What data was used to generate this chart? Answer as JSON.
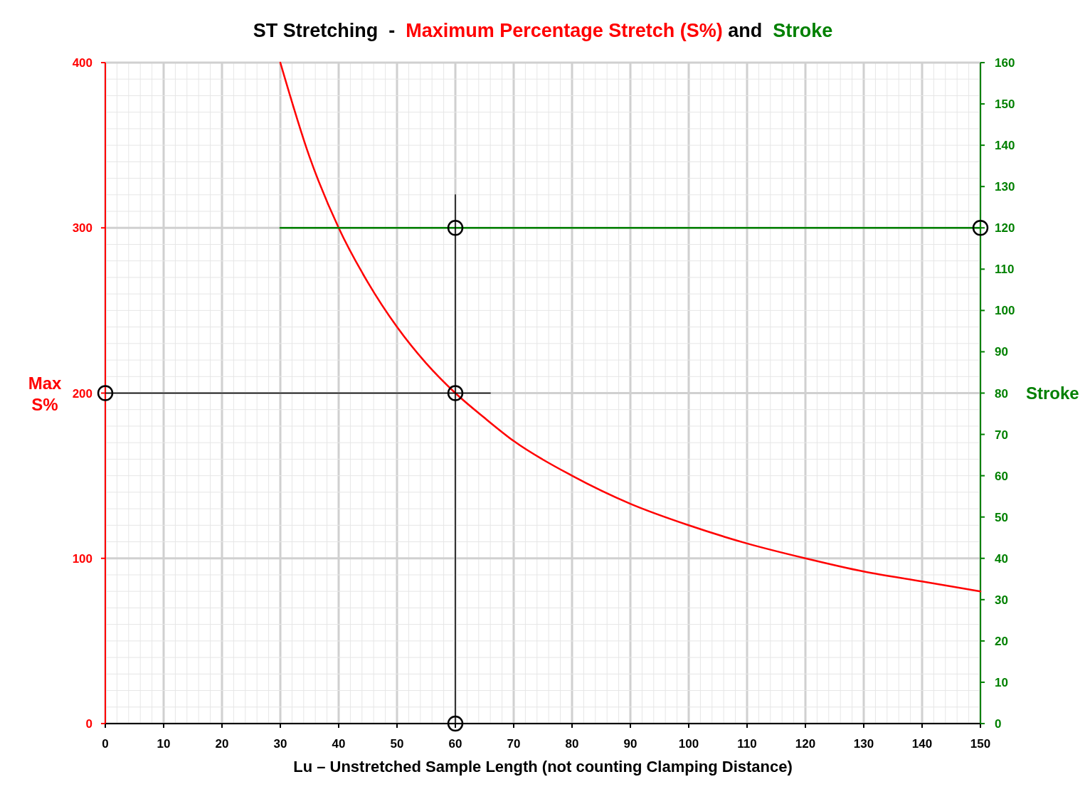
{
  "chart_data": {
    "type": "line",
    "title": "ST Stretching  -  ",
    "annotations": [
      " and  "
    ],
    "legend": "top",
    "xlabel": "Lu  – Unstretched Sample Length (not counting Clamping Distance)",
    "ylabel": "Max\nS%",
    "y2label": "Stroke",
    "xlim": [
      0,
      150
    ],
    "xticks": [
      0,
      10,
      20,
      30,
      40,
      50,
      60,
      70,
      80,
      90,
      100,
      110,
      120,
      130,
      140,
      150
    ],
    "ylim": [
      0,
      400
    ],
    "yticks": [
      0,
      100,
      200,
      300,
      400
    ],
    "y2lim": [
      0,
      160
    ],
    "y2ticks": [
      0,
      10,
      20,
      30,
      40,
      50,
      60,
      70,
      80,
      90,
      100,
      110,
      120,
      130,
      140,
      150,
      160
    ],
    "grid": true,
    "line_style": "solid",
    "series": [
      {
        "name": "Maximum Percentage Stretch (S%)",
        "color": "#ff0000",
        "x": [
          30,
          35,
          40,
          45,
          50,
          55,
          60,
          65,
          70,
          80,
          90,
          100,
          110,
          120,
          130,
          140,
          150
        ],
        "values": [
          400,
          343,
          300,
          267,
          240,
          218,
          200,
          185,
          171,
          150,
          133,
          120,
          109,
          100,
          92,
          86,
          80
        ]
      },
      {
        "name": "Stroke",
        "color": "#008000",
        "axis": "y2",
        "x": [
          30,
          150
        ],
        "values": [
          120,
          120
        ]
      },
      {
        "color": "#000000",
        "x": [
          60,
          60
        ],
        "values": [
          0,
          320
        ]
      },
      {
        "color": "#000000",
        "x": [
          0,
          66
        ],
        "values": [
          200,
          200
        ]
      },
      {
        "type": "scatter",
        "marker": "circle",
        "color": "#000000",
        "x": [
          0,
          60,
          60,
          60,
          150
        ],
        "values": [
          200,
          200,
          300,
          0,
          300
        ]
      }
    ]
  }
}
